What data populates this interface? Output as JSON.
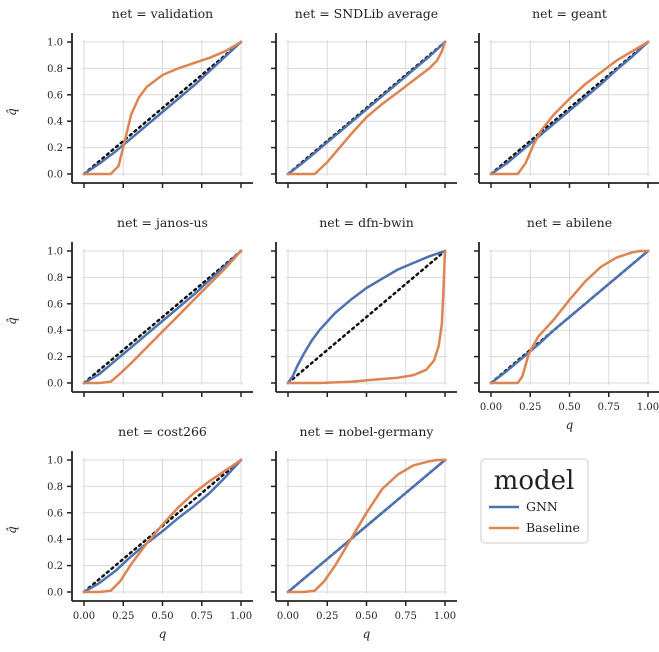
{
  "chart_data": {
    "type": "line",
    "layout": "facet-grid 3x3",
    "xlabel": "q",
    "ylabel": "q̂",
    "xlim": [
      0,
      1
    ],
    "ylim": [
      0,
      1
    ],
    "x_ticks": [
      "0.00",
      "0.25",
      "0.50",
      "0.75",
      "1.00"
    ],
    "y_ticks": [
      "0.0",
      "0.2",
      "0.4",
      "0.6",
      "0.8",
      "1.0"
    ],
    "grid": true,
    "reference_line": {
      "style": "dotted",
      "color": "#111111",
      "points": [
        [
          0,
          0
        ],
        [
          1,
          1
        ]
      ]
    },
    "legend": {
      "title": "model",
      "placement": "bottom-right cell",
      "entries": [
        {
          "name": "GNN",
          "color": "#4c72b0"
        },
        {
          "name": "Baseline",
          "color": "#dd8452"
        }
      ]
    },
    "panels": [
      {
        "title": "net = validation",
        "series": [
          {
            "name": "GNN",
            "x": [
              0,
              0.1,
              0.2,
              0.3,
              0.4,
              0.5,
              0.6,
              0.7,
              0.8,
              0.9,
              1.0
            ],
            "y": [
              0,
              0.08,
              0.17,
              0.27,
              0.37,
              0.47,
              0.57,
              0.67,
              0.78,
              0.89,
              1.0
            ]
          },
          {
            "name": "Baseline",
            "x": [
              0,
              0.1,
              0.17,
              0.22,
              0.26,
              0.3,
              0.35,
              0.4,
              0.5,
              0.6,
              0.7,
              0.8,
              0.9,
              1.0
            ],
            "y": [
              0,
              0,
              0,
              0.06,
              0.25,
              0.45,
              0.58,
              0.66,
              0.75,
              0.8,
              0.84,
              0.88,
              0.93,
              1.0
            ]
          }
        ]
      },
      {
        "title": "net = SNDLib average",
        "series": [
          {
            "name": "GNN",
            "x": [
              0,
              0.1,
              0.2,
              0.3,
              0.4,
              0.5,
              0.6,
              0.7,
              0.8,
              0.9,
              1.0
            ],
            "y": [
              0,
              0.09,
              0.19,
              0.29,
              0.39,
              0.49,
              0.59,
              0.69,
              0.79,
              0.89,
              1.0
            ]
          },
          {
            "name": "Baseline",
            "x": [
              0,
              0.1,
              0.17,
              0.25,
              0.3,
              0.4,
              0.5,
              0.6,
              0.7,
              0.8,
              0.9,
              0.95,
              0.98,
              1.0
            ],
            "y": [
              0,
              0,
              0,
              0.09,
              0.16,
              0.3,
              0.43,
              0.53,
              0.62,
              0.71,
              0.8,
              0.86,
              0.93,
              1.0
            ]
          }
        ]
      },
      {
        "title": "net = geant",
        "series": [
          {
            "name": "GNN",
            "x": [
              0,
              0.1,
              0.2,
              0.3,
              0.4,
              0.5,
              0.6,
              0.7,
              0.8,
              0.9,
              1.0
            ],
            "y": [
              0,
              0.08,
              0.18,
              0.28,
              0.38,
              0.48,
              0.58,
              0.68,
              0.79,
              0.89,
              1.0
            ]
          },
          {
            "name": "Baseline",
            "x": [
              0,
              0.1,
              0.17,
              0.22,
              0.27,
              0.32,
              0.4,
              0.5,
              0.6,
              0.7,
              0.8,
              0.9,
              1.0
            ],
            "y": [
              0,
              0,
              0,
              0.08,
              0.22,
              0.33,
              0.45,
              0.57,
              0.68,
              0.77,
              0.86,
              0.93,
              1.0
            ]
          }
        ]
      },
      {
        "title": "net = janos-us",
        "series": [
          {
            "name": "GNN",
            "x": [
              0,
              0.1,
              0.2,
              0.3,
              0.4,
              0.5,
              0.6,
              0.7,
              0.8,
              0.9,
              1.0
            ],
            "y": [
              0,
              0.07,
              0.17,
              0.27,
              0.37,
              0.47,
              0.57,
              0.67,
              0.78,
              0.89,
              1.0
            ]
          },
          {
            "name": "Baseline",
            "x": [
              0,
              0.1,
              0.17,
              0.22,
              0.3,
              0.4,
              0.5,
              0.6,
              0.7,
              0.8,
              0.9,
              1.0
            ],
            "y": [
              0,
              0,
              0.01,
              0.06,
              0.15,
              0.27,
              0.39,
              0.51,
              0.63,
              0.75,
              0.87,
              1.0
            ]
          }
        ]
      },
      {
        "title": "net = dfn-bwin",
        "series": [
          {
            "name": "GNN",
            "x": [
              0,
              0.03,
              0.06,
              0.1,
              0.15,
              0.2,
              0.3,
              0.4,
              0.5,
              0.6,
              0.7,
              0.8,
              0.9,
              1.0
            ],
            "y": [
              0,
              0.05,
              0.13,
              0.22,
              0.32,
              0.4,
              0.53,
              0.63,
              0.72,
              0.79,
              0.86,
              0.91,
              0.96,
              1.0
            ]
          },
          {
            "name": "Baseline",
            "x": [
              0,
              0.2,
              0.4,
              0.5,
              0.6,
              0.7,
              0.8,
              0.88,
              0.93,
              0.96,
              0.98,
              0.99,
              1.0
            ],
            "y": [
              0,
              0,
              0.01,
              0.02,
              0.03,
              0.04,
              0.06,
              0.1,
              0.17,
              0.28,
              0.45,
              0.7,
              1.0
            ]
          }
        ]
      },
      {
        "title": "net = abilene",
        "series": [
          {
            "name": "GNN",
            "x": [
              0,
              0.1,
              0.2,
              0.3,
              0.4,
              0.5,
              0.6,
              0.7,
              0.8,
              0.9,
              1.0
            ],
            "y": [
              0,
              0.09,
              0.19,
              0.29,
              0.4,
              0.5,
              0.6,
              0.7,
              0.8,
              0.9,
              1.0
            ]
          },
          {
            "name": "Baseline",
            "x": [
              0,
              0.1,
              0.17,
              0.2,
              0.24,
              0.3,
              0.4,
              0.5,
              0.6,
              0.7,
              0.8,
              0.9,
              0.95,
              1.0
            ],
            "y": [
              0,
              0,
              0,
              0.05,
              0.22,
              0.35,
              0.48,
              0.63,
              0.77,
              0.88,
              0.95,
              0.99,
              1.0,
              1.0
            ]
          }
        ]
      },
      {
        "title": "net = cost266",
        "series": [
          {
            "name": "GNN",
            "x": [
              0,
              0.1,
              0.2,
              0.3,
              0.4,
              0.5,
              0.6,
              0.7,
              0.8,
              0.9,
              1.0
            ],
            "y": [
              0,
              0.07,
              0.16,
              0.27,
              0.37,
              0.46,
              0.56,
              0.65,
              0.75,
              0.87,
              1.0
            ]
          },
          {
            "name": "Baseline",
            "x": [
              0,
              0.1,
              0.17,
              0.23,
              0.3,
              0.4,
              0.5,
              0.6,
              0.7,
              0.8,
              0.9,
              1.0
            ],
            "y": [
              0,
              0,
              0.01,
              0.08,
              0.21,
              0.37,
              0.51,
              0.64,
              0.75,
              0.84,
              0.92,
              1.0
            ]
          }
        ]
      },
      {
        "title": "net = nobel-germany",
        "series": [
          {
            "name": "GNN",
            "x": [
              0,
              0.1,
              0.2,
              0.3,
              0.4,
              0.5,
              0.6,
              0.7,
              0.8,
              0.9,
              1.0
            ],
            "y": [
              0,
              0.1,
              0.2,
              0.3,
              0.4,
              0.5,
              0.6,
              0.7,
              0.8,
              0.9,
              1.0
            ]
          },
          {
            "name": "Baseline",
            "x": [
              0,
              0.1,
              0.17,
              0.23,
              0.3,
              0.4,
              0.5,
              0.6,
              0.7,
              0.8,
              0.9,
              0.95,
              1.0
            ],
            "y": [
              0,
              0,
              0.01,
              0.08,
              0.2,
              0.4,
              0.6,
              0.78,
              0.89,
              0.96,
              0.99,
              1.0,
              1.0
            ]
          }
        ]
      }
    ]
  }
}
